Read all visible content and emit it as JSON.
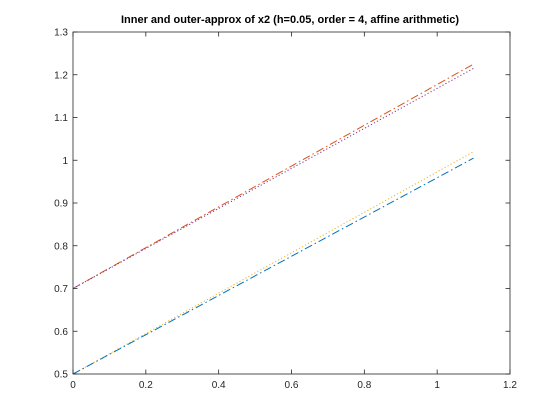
{
  "chart_data": {
    "type": "line",
    "title": "Inner and outer-approx of x2 (h=0.05, order = 4, affine arithmetic)",
    "xlabel": "",
    "ylabel": "",
    "xlim": [
      0,
      1.2
    ],
    "ylim": [
      0.5,
      1.3
    ],
    "grid": false,
    "legend": "none",
    "xticks": [
      0,
      0.2,
      0.4,
      0.6,
      0.8,
      1,
      1.2
    ],
    "xtick_labels": [
      "0",
      "0.2",
      "0.4",
      "0.6",
      "0.8",
      "1",
      "1.2"
    ],
    "yticks": [
      0.5,
      0.6,
      0.7,
      0.8,
      0.9,
      1,
      1.1,
      1.2,
      1.3
    ],
    "ytick_labels": [
      "0.5",
      "0.6",
      "0.7",
      "0.8",
      "0.9",
      "1",
      "1.1",
      "1.2",
      "1.3"
    ],
    "series": [
      {
        "color": "#D95319",
        "style": "dash-dot",
        "x": [
          0,
          1.1
        ],
        "y": [
          0.7,
          1.225
        ]
      },
      {
        "color": "#7E2F8E",
        "style": "dotted",
        "x": [
          0,
          1.1
        ],
        "y": [
          0.7,
          1.215
        ]
      },
      {
        "color": "#EDB120",
        "style": "dotted",
        "x": [
          0,
          1.1
        ],
        "y": [
          0.5,
          1.02
        ]
      },
      {
        "color": "#0072BD",
        "style": "dash-dot",
        "x": [
          0,
          1.1
        ],
        "y": [
          0.5,
          1.005
        ]
      }
    ]
  }
}
